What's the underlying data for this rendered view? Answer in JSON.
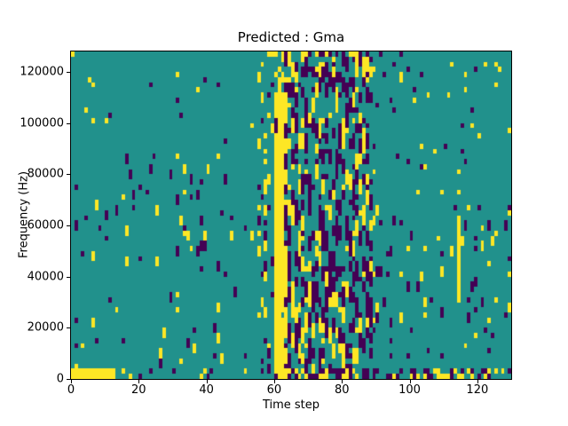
{
  "figure": {
    "background": "#ffffff",
    "axes_line_color": "#000000"
  },
  "chart_data": {
    "type": "heatmap",
    "title": "Predicted : Gma",
    "xlabel": "Time step",
    "ylabel": "Frequency (Hz)",
    "x_ticks": [
      0,
      20,
      40,
      60,
      80,
      100,
      120
    ],
    "y_ticks": [
      0,
      20000,
      40000,
      60000,
      80000,
      100000,
      120000
    ],
    "x_range": [
      0,
      130
    ],
    "y_range": [
      0,
      128000
    ],
    "grid": {
      "cols": 130,
      "rows": 64,
      "time_step": 1,
      "freq_bin_hz": 2000
    },
    "legend": null,
    "grid_lines": false,
    "palette": {
      "mid_background": "#21918c",
      "low": "#440154",
      "high": "#fde725"
    },
    "notable_features": [
      "solid yellow band at bottom-left: time 0-12, frequency 0-4000 Hz",
      "tall solid yellow vertical band at time steps 60-62 spanning nearly all frequencies",
      "dense mixed purple/yellow vertical streaks between time steps 63-88",
      "sparse scattered single-cell yellow and purple marks elsewhere on teal background",
      "alternating purple/yellow cells along the bottom rows for time steps 63-129"
    ],
    "pattern": {
      "seed": 42,
      "regions": [
        {
          "name": "left-low",
          "cols": [
            0,
            59
          ],
          "rows": [
            2,
            19
          ],
          "yellow": 0.016,
          "purple": 0.016,
          "streak": 2
        },
        {
          "name": "left-mid",
          "cols": [
            0,
            59
          ],
          "rows": [
            20,
            43
          ],
          "yellow": 0.022,
          "purple": 0.022,
          "streak": 2
        },
        {
          "name": "left-top",
          "cols": [
            0,
            59
          ],
          "rows": [
            44,
            63
          ],
          "yellow": 0.012,
          "purple": 0.01,
          "streak": 1
        },
        {
          "name": "bottom-left-noise",
          "cols": [
            13,
            59
          ],
          "rows": [
            0,
            1
          ],
          "yellow": 0.06,
          "purple": 0.08,
          "streak": 1
        },
        {
          "name": "pre-band",
          "cols": [
            55,
            59
          ],
          "rows": [
            0,
            63
          ],
          "yellow": 0.07,
          "purple": 0.05,
          "streak": 2
        },
        {
          "name": "dense-purple-zone",
          "cols": [
            63,
            88
          ],
          "rows": [
            0,
            63
          ],
          "yellow": 0.1,
          "purple": 0.22,
          "streak": 3
        },
        {
          "name": "right-mid",
          "cols": [
            89,
            129
          ],
          "rows": [
            8,
            33
          ],
          "yellow": 0.03,
          "purple": 0.035,
          "streak": 2
        },
        {
          "name": "right-top",
          "cols": [
            89,
            129
          ],
          "rows": [
            34,
            63
          ],
          "yellow": 0.014,
          "purple": 0.014,
          "streak": 1
        },
        {
          "name": "right-low",
          "cols": [
            89,
            129
          ],
          "rows": [
            2,
            7
          ],
          "yellow": 0.02,
          "purple": 0.03,
          "streak": 1
        },
        {
          "name": "bottom-right-band",
          "cols": [
            63,
            129
          ],
          "rows": [
            0,
            1
          ],
          "yellow": 0.22,
          "purple": 0.26,
          "streak": 1
        },
        {
          "name": "right-yellow-streak",
          "cols": [
            114,
            114
          ],
          "rows": [
            15,
            31
          ],
          "yellow": 0.55,
          "purple": 0.05,
          "streak": 3
        },
        {
          "name": "yellow-band-main",
          "cols": [
            60,
            62
          ],
          "rows": [
            0,
            55
          ],
          "yellow": 0.97,
          "purple": 0.02,
          "streak": 4
        },
        {
          "name": "yellow-band-top",
          "cols": [
            60,
            62
          ],
          "rows": [
            56,
            63
          ],
          "yellow": 0.45,
          "purple": 0.05,
          "streak": 2
        },
        {
          "name": "band-edge-mix",
          "cols": [
            63,
            63
          ],
          "rows": [
            0,
            63
          ],
          "yellow": 0.25,
          "purple": 0.35,
          "streak": 3
        },
        {
          "name": "bottom-left-solid-yellow",
          "cols": [
            0,
            12
          ],
          "rows": [
            0,
            1
          ],
          "yellow": 1.0,
          "purple": 0.0,
          "streak": 1
        }
      ]
    }
  }
}
